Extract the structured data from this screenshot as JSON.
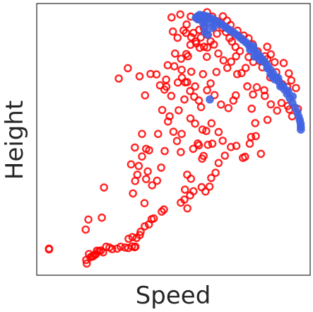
{
  "chart_data": {
    "type": "scatter",
    "xlabel": "Speed",
    "ylabel": "Height",
    "xlim": [
      0,
      100
    ],
    "ylim": [
      0,
      100
    ],
    "grid": false,
    "legend": "none",
    "series": [
      {
        "color": "#ff0000",
        "marker": "hollow-circle",
        "points": [
          [
            4.5,
            9.8
          ],
          [
            4.5,
            9.5
          ],
          [
            18.1,
            5.6
          ],
          [
            18.3,
            4.3
          ],
          [
            19.1,
            7.8
          ],
          [
            19.6,
            6.6
          ],
          [
            20.2,
            7.0
          ],
          [
            20.7,
            7.0
          ],
          [
            21.2,
            7.5
          ],
          [
            21.7,
            7.8
          ],
          [
            22.0,
            9.0
          ],
          [
            22.8,
            8.9
          ],
          [
            23.5,
            9.1
          ],
          [
            24.3,
            8.4
          ],
          [
            25.4,
            10.5
          ],
          [
            26.6,
            10.2
          ],
          [
            27.6,
            9.6
          ],
          [
            29.4,
            9.8
          ],
          [
            30.7,
            10.5
          ],
          [
            32.3,
            10.2
          ],
          [
            33.5,
            10.0
          ],
          [
            34.8,
            10.6
          ],
          [
            35.8,
            10.3
          ],
          [
            36.1,
            10.5
          ],
          [
            18.9,
            20.5
          ],
          [
            17.9,
            16.8
          ],
          [
            23.8,
            21.2
          ],
          [
            24.6,
            32.3
          ],
          [
            33.6,
            13.4
          ],
          [
            35.0,
            14.0
          ],
          [
            36.5,
            13.7
          ],
          [
            37.7,
            14.8
          ],
          [
            38.0,
            16.0
          ],
          [
            39.5,
            18.0
          ],
          [
            41.0,
            18.7
          ],
          [
            42.0,
            20.6
          ],
          [
            42.8,
            20.9
          ],
          [
            45.7,
            23.4
          ],
          [
            46.5,
            24.2
          ],
          [
            39.4,
            26.5
          ],
          [
            35.2,
            30.1
          ],
          [
            36.0,
            34.7
          ],
          [
            36.8,
            37.0
          ],
          [
            37.3,
            40.2
          ],
          [
            34.5,
            40.8
          ],
          [
            35.9,
            47.0
          ],
          [
            38.5,
            43.7
          ],
          [
            40.0,
            46.5
          ],
          [
            41.1,
            46.0
          ],
          [
            40.0,
            35.4
          ],
          [
            40.6,
            38.2
          ],
          [
            42.2,
            33.1
          ],
          [
            44.0,
            34.8
          ],
          [
            45.5,
            39.6
          ],
          [
            46.8,
            45.7
          ],
          [
            38.5,
            52.0
          ],
          [
            44.4,
            52.0
          ],
          [
            52.7,
            26.7
          ],
          [
            55.1,
            24.6
          ],
          [
            54.0,
            27.8
          ],
          [
            56.1,
            29.4
          ],
          [
            57.3,
            30.9
          ],
          [
            54.2,
            31.5
          ],
          [
            55.0,
            37.0
          ],
          [
            56.4,
            35.5
          ],
          [
            60.3,
            32.4
          ],
          [
            61.7,
            30.8
          ],
          [
            63.2,
            32.6
          ],
          [
            63.8,
            35.8
          ],
          [
            65.4,
            37.7
          ],
          [
            66.5,
            41.3
          ],
          [
            68.8,
            44.0
          ],
          [
            52.7,
            45.3
          ],
          [
            51.3,
            49.4
          ],
          [
            57.2,
            46.5
          ],
          [
            58.9,
            48.5
          ],
          [
            59.3,
            47.8
          ],
          [
            60.5,
            42.9
          ],
          [
            61.0,
            43.9
          ],
          [
            62.6,
            48.0
          ],
          [
            64.2,
            48.4
          ],
          [
            68.0,
            49.5
          ],
          [
            71.0,
            47.2
          ],
          [
            73.0,
            47.6
          ],
          [
            77.9,
            48.4
          ],
          [
            78.4,
            50.9
          ],
          [
            80.1,
            51.2
          ],
          [
            76.2,
            43.6
          ],
          [
            75.4,
            43.2
          ],
          [
            82.0,
            44.7
          ],
          [
            79.9,
            56.0
          ],
          [
            78.6,
            61.3
          ],
          [
            84.4,
            57.2
          ],
          [
            85.6,
            62.9
          ],
          [
            87.9,
            60.6
          ],
          [
            89.5,
            63.4
          ],
          [
            91.8,
            62.3
          ],
          [
            92.4,
            61.0
          ],
          [
            93.4,
            58.5
          ],
          [
            95.5,
            61.2
          ],
          [
            88.5,
            71.4
          ],
          [
            85.4,
            72.8
          ],
          [
            83.2,
            68.1
          ],
          [
            83.4,
            66.0
          ],
          [
            80.5,
            69.2
          ],
          [
            79.1,
            66.5
          ],
          [
            77.0,
            69.5
          ],
          [
            72.8,
            66.2
          ],
          [
            71.9,
            64.3
          ],
          [
            70.1,
            61.5
          ],
          [
            67.4,
            62.8
          ],
          [
            65.0,
            66.3
          ],
          [
            62.3,
            68.1
          ],
          [
            59.3,
            64.3
          ],
          [
            57.6,
            65.7
          ],
          [
            56.1,
            67.8
          ],
          [
            57.9,
            69.5
          ],
          [
            55.0,
            71.1
          ],
          [
            53.1,
            72.7
          ],
          [
            51.6,
            70.9
          ],
          [
            49.2,
            66.0
          ],
          [
            47.4,
            69.4
          ],
          [
            46.7,
            68.3
          ],
          [
            47.3,
            72.0
          ],
          [
            45.1,
            69.9
          ],
          [
            43.8,
            73.9
          ],
          [
            41.6,
            74.1
          ],
          [
            47.9,
            77.3
          ],
          [
            50.3,
            76.9
          ],
          [
            52.8,
            79.7
          ],
          [
            54.7,
            81.4
          ],
          [
            56.2,
            84.8
          ],
          [
            58.1,
            86.1
          ],
          [
            59.6,
            83.7
          ],
          [
            61.2,
            84.1
          ],
          [
            62.4,
            83.8
          ],
          [
            64.8,
            84.9
          ],
          [
            66.4,
            81.6
          ],
          [
            68.3,
            79.1
          ],
          [
            69.7,
            76.3
          ],
          [
            71.1,
            78.6
          ],
          [
            72.9,
            80.6
          ],
          [
            73.3,
            74.0
          ],
          [
            74.9,
            74.4
          ],
          [
            76.4,
            76.3
          ],
          [
            77.5,
            80.3
          ],
          [
            79.2,
            78.5
          ],
          [
            81.5,
            78.9
          ],
          [
            82.5,
            76.5
          ],
          [
            83.5,
            80.6
          ],
          [
            84.3,
            84.1
          ],
          [
            85.6,
            81.3
          ],
          [
            87.0,
            78.4
          ],
          [
            87.6,
            74.7
          ],
          [
            89.8,
            70.3
          ],
          [
            91.6,
            69.3
          ],
          [
            93.1,
            71.7
          ],
          [
            94.8,
            68.9
          ],
          [
            90.3,
            78.1
          ],
          [
            92.2,
            74.3
          ],
          [
            57.3,
            89.2
          ],
          [
            59.4,
            90.3
          ],
          [
            61.1,
            91.0
          ],
          [
            62.2,
            88.6
          ],
          [
            63.6,
            86.1
          ],
          [
            65.9,
            88.9
          ],
          [
            67.9,
            91.1
          ],
          [
            69.2,
            89.5
          ],
          [
            70.5,
            87.3
          ],
          [
            71.4,
            86.0
          ],
          [
            72.7,
            84.0
          ],
          [
            74.3,
            82.5
          ],
          [
            75.7,
            88.2
          ],
          [
            77.5,
            87.2
          ],
          [
            79.0,
            85.0
          ],
          [
            80.8,
            82.4
          ],
          [
            84.3,
            79.5
          ],
          [
            56.3,
            95.2
          ],
          [
            59.5,
            94.2
          ],
          [
            62.3,
            96.8
          ],
          [
            64.2,
            95.2
          ],
          [
            66.0,
            93.5
          ],
          [
            68.1,
            95.3
          ],
          [
            69.6,
            93.7
          ],
          [
            70.9,
            92.1
          ],
          [
            73.4,
            90.0
          ],
          [
            75.2,
            86.9
          ],
          [
            49.8,
            89.7
          ],
          [
            51.5,
            87.4
          ],
          [
            53.7,
            90.1
          ],
          [
            54.8,
            92.3
          ],
          [
            49.3,
            94.9
          ],
          [
            52.5,
            96.0
          ],
          [
            54.6,
            89.2
          ],
          [
            56.5,
            87.6
          ],
          [
            58.4,
            85.3
          ],
          [
            60.0,
            87.5
          ],
          [
            50.6,
            81.6
          ],
          [
            55.3,
            80.6
          ],
          [
            53.0,
            75.6
          ],
          [
            56.5,
            74.9
          ],
          [
            62.2,
            80.4
          ],
          [
            63.6,
            70.6
          ],
          [
            65.7,
            74.8
          ],
          [
            60.8,
            74.0
          ],
          [
            48.6,
            58.5
          ],
          [
            56.2,
            57.7
          ],
          [
            57.9,
            55.8
          ],
          [
            60.6,
            53.6
          ],
          [
            62.0,
            53.1
          ],
          [
            63.9,
            55.9
          ],
          [
            66.5,
            52.7
          ],
          [
            51.9,
            60.7
          ],
          [
            54.0,
            64.7
          ],
          [
            45.9,
            60.8
          ],
          [
            39.6,
            66.2
          ],
          [
            33.3,
            76.2
          ],
          [
            30.0,
            72.4
          ],
          [
            37.6,
            73.2
          ],
          [
            48.0,
            56.6
          ],
          [
            50.0,
            52.8
          ],
          [
            53.0,
            52.0
          ],
          [
            54.3,
            71.0
          ],
          [
            60.1,
            61.9
          ]
        ]
      },
      {
        "color": "#4164e1",
        "marker": "filled-circle",
        "points": [
          [
            58.8,
            95.3
          ],
          [
            59.5,
            95.8
          ],
          [
            60.5,
            95.7
          ],
          [
            61.5,
            95.5
          ],
          [
            62.5,
            95.2
          ],
          [
            63.5,
            94.7
          ],
          [
            64.5,
            94.2
          ],
          [
            65.5,
            93.6
          ],
          [
            66.5,
            93.0
          ],
          [
            67.5,
            92.4
          ],
          [
            68.5,
            91.7
          ],
          [
            69.5,
            91.0
          ],
          [
            70.5,
            90.3
          ],
          [
            71.5,
            89.6
          ],
          [
            72.5,
            88.9
          ],
          [
            73.5,
            88.2
          ],
          [
            74.5,
            87.4
          ],
          [
            75.5,
            86.6
          ],
          [
            76.5,
            85.7
          ],
          [
            77.5,
            84.8
          ],
          [
            78.5,
            83.9
          ],
          [
            79.5,
            82.9
          ],
          [
            80.5,
            81.8
          ],
          [
            81.5,
            80.7
          ],
          [
            82.5,
            79.5
          ],
          [
            83.5,
            78.3
          ],
          [
            84.5,
            77.0
          ],
          [
            85.5,
            75.6
          ],
          [
            86.5,
            74.2
          ],
          [
            87.5,
            72.8
          ],
          [
            88.5,
            71.3
          ],
          [
            89.5,
            69.9
          ],
          [
            90.5,
            68.4
          ],
          [
            91.5,
            66.8
          ],
          [
            92.5,
            65.2
          ],
          [
            93.5,
            63.5
          ],
          [
            94.5,
            61.7
          ],
          [
            95.3,
            60.0
          ],
          [
            95.8,
            58.4
          ],
          [
            96.2,
            57.1
          ],
          [
            96.5,
            55.8
          ],
          [
            96.6,
            54.6
          ],
          [
            96.6,
            53.6
          ],
          [
            61.3,
            91.6
          ],
          [
            61.5,
            89.5
          ],
          [
            60.9,
            92.8
          ],
          [
            61.2,
            93.9
          ],
          [
            61.8,
            94.1
          ],
          [
            63.2,
            93.1
          ],
          [
            58.2,
            94.8
          ],
          [
            58.9,
            94.2
          ],
          [
            60.0,
            94.6
          ],
          [
            65.0,
            91.7
          ],
          [
            64.1,
            91.0
          ],
          [
            62.6,
            88.4
          ],
          [
            63.3,
            64.7
          ],
          [
            78.0,
            83.0
          ],
          [
            77.6,
            84.9
          ],
          [
            79.2,
            84.3
          ],
          [
            79.6,
            80.5
          ],
          [
            80.7,
            80.8
          ],
          [
            81.5,
            79.2
          ],
          [
            83.0,
            78.6
          ],
          [
            84.3,
            76.2
          ],
          [
            85.5,
            74.1
          ],
          [
            87.0,
            72.1
          ],
          [
            86.2,
            73.1
          ],
          [
            88.3,
            72.6
          ],
          [
            89.1,
            69.5
          ],
          [
            90.2,
            69.5
          ],
          [
            92.0,
            67.8
          ],
          [
            93.6,
            65.8
          ]
        ]
      }
    ]
  }
}
